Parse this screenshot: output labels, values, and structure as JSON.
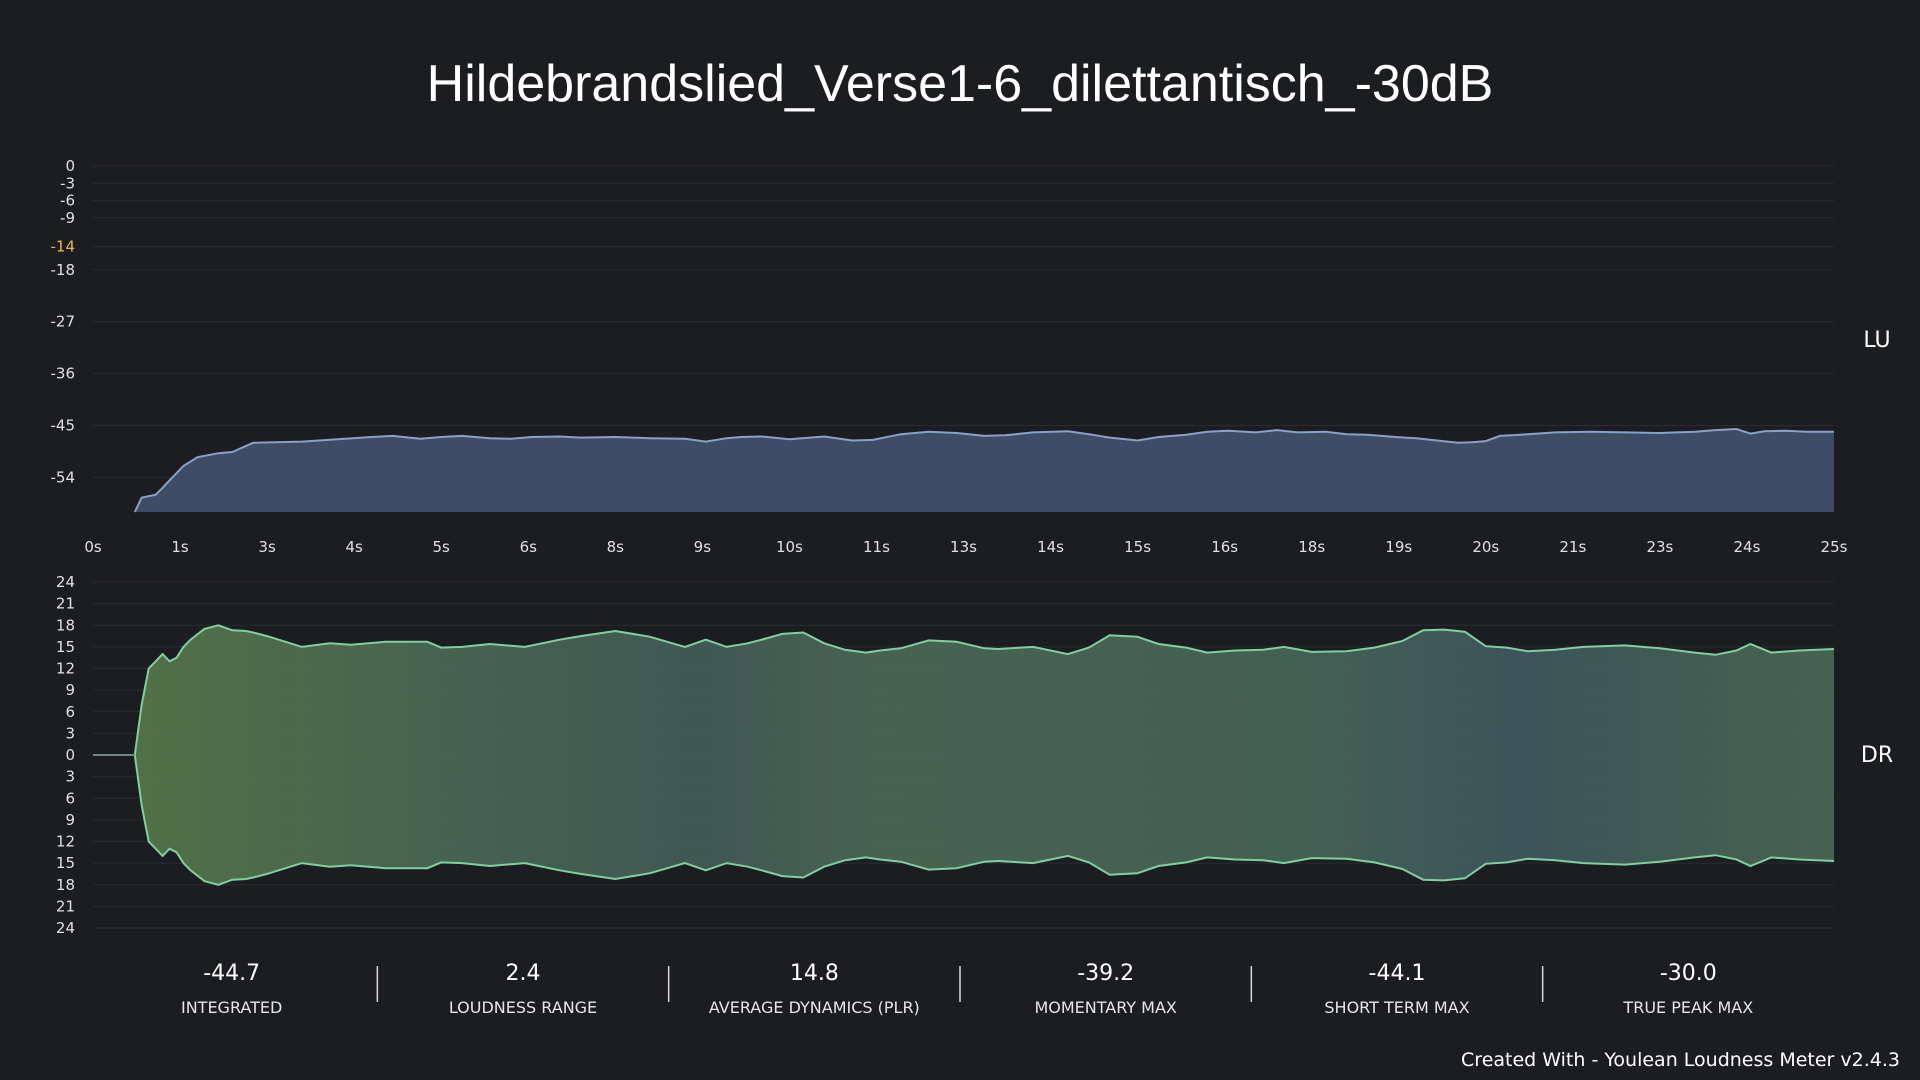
{
  "chart_data": {
    "title": "Hildebrandslied_Verse1-6_dilettantisch_-30dB",
    "loudness": {
      "type": "area",
      "axis_tag": "LU",
      "ylim": [
        -60,
        0
      ],
      "yticks": [
        "0",
        "-3",
        "-6",
        "-9",
        "-14",
        "-18",
        "-27",
        "-36",
        "-45",
        "-54"
      ],
      "ytick_values": [
        0,
        -3,
        -6,
        -9,
        -14,
        -18,
        -27,
        -36,
        -45,
        -54
      ],
      "highlight_tick": "-14",
      "xlim": [
        0,
        25
      ],
      "xticks": [
        "0s",
        "1s",
        "3s",
        "4s",
        "5s",
        "6s",
        "8s",
        "9s",
        "10s",
        "11s",
        "13s",
        "14s",
        "15s",
        "16s",
        "18s",
        "19s",
        "20s",
        "21s",
        "23s",
        "24s",
        "25s"
      ],
      "fill_color": "#3e4c66",
      "line_color": "#8aa0c8",
      "x": [
        0.6,
        0.7,
        0.9,
        1.0,
        1.1,
        1.3,
        1.5,
        1.8,
        2.0,
        2.3,
        3.0,
        4.0,
        4.3,
        4.7,
        5.0,
        5.3,
        5.7,
        6.0,
        6.3,
        6.7,
        7.0,
        7.5,
        8.0,
        8.5,
        8.8,
        9.1,
        9.3,
        9.6,
        10.0,
        10.5,
        10.9,
        11.2,
        11.6,
        12.0,
        12.4,
        12.8,
        13.1,
        13.5,
        14.0,
        14.3,
        14.6,
        15.0,
        15.3,
        15.7,
        16.0,
        16.3,
        16.7,
        17.0,
        17.3,
        17.7,
        18.0,
        18.3,
        18.7,
        19.0,
        19.3,
        19.6,
        19.8,
        20.0,
        20.2,
        20.5,
        21.0,
        21.5,
        22.0,
        22.5,
        23.0,
        23.3,
        23.6,
        23.8,
        24.0,
        24.3,
        24.6,
        25.0
      ],
      "values": [
        -60.0,
        -57.5,
        -57.0,
        -55.8,
        -54.5,
        -52.0,
        -50.5,
        -49.8,
        -49.6,
        -48.0,
        -47.8,
        -47.0,
        -46.8,
        -47.3,
        -47.0,
        -46.8,
        -47.2,
        -47.3,
        -47.0,
        -46.9,
        -47.1,
        -47.0,
        -47.2,
        -47.3,
        -47.8,
        -47.2,
        -47.0,
        -46.9,
        -47.4,
        -46.9,
        -47.6,
        -47.5,
        -46.5,
        -46.1,
        -46.3,
        -46.8,
        -46.7,
        -46.2,
        -46.0,
        -46.5,
        -47.1,
        -47.6,
        -47.0,
        -46.6,
        -46.1,
        -45.9,
        -46.2,
        -45.8,
        -46.2,
        -46.1,
        -46.5,
        -46.6,
        -47.0,
        -47.2,
        -47.6,
        -48.0,
        -47.9,
        -47.7,
        -46.8,
        -46.6,
        -46.2,
        -46.1,
        -46.2,
        -46.3,
        -46.1,
        -45.8,
        -45.6,
        -46.4,
        -46.0,
        -45.9,
        -46.1,
        -46.1
      ]
    },
    "dynamics": {
      "type": "area",
      "axis_tag": "DR",
      "ylim": [
        -24,
        24
      ],
      "yticks": [
        "24",
        "21",
        "18",
        "15",
        "12",
        "9",
        "6",
        "3",
        "0",
        "3",
        "6",
        "9",
        "12",
        "15",
        "18",
        "21",
        "24"
      ],
      "ytick_values": [
        24,
        21,
        18,
        15,
        12,
        9,
        6,
        3,
        0,
        -3,
        -6,
        -9,
        -12,
        -15,
        -18,
        -21,
        -24
      ],
      "xlim": [
        0,
        25
      ],
      "fill_color": "#4a6a52",
      "line_color": "#7fd0a0",
      "x": [
        0.0,
        0.6,
        0.7,
        0.8,
        0.9,
        1.0,
        1.1,
        1.2,
        1.3,
        1.4,
        1.6,
        1.8,
        2.0,
        2.2,
        2.3,
        2.5,
        3.0,
        3.4,
        3.7,
        4.2,
        4.8,
        5.0,
        5.3,
        5.7,
        6.2,
        6.7,
        7.0,
        7.5,
        8.0,
        8.5,
        8.8,
        9.1,
        9.4,
        9.6,
        9.9,
        10.2,
        10.5,
        10.8,
        11.1,
        11.3,
        11.6,
        12.0,
        12.4,
        12.8,
        13.0,
        13.5,
        14.0,
        14.3,
        14.6,
        15.0,
        15.3,
        15.7,
        16.0,
        16.4,
        16.8,
        17.1,
        17.5,
        18.0,
        18.4,
        18.8,
        19.1,
        19.4,
        19.7,
        20.0,
        20.3,
        20.6,
        21.0,
        21.4,
        22.0,
        22.5,
        23.0,
        23.3,
        23.6,
        23.8,
        24.1,
        24.5,
        25.0
      ],
      "values": [
        0.0,
        0.0,
        7.0,
        12.0,
        13.0,
        14.0,
        13.0,
        13.5,
        15.0,
        16.0,
        17.5,
        18.0,
        17.3,
        17.2,
        17.0,
        16.5,
        15.0,
        15.5,
        15.3,
        15.7,
        15.7,
        14.9,
        15.0,
        15.4,
        15.0,
        16.0,
        16.5,
        17.2,
        16.4,
        15.0,
        16.0,
        15.0,
        15.5,
        16.0,
        16.8,
        17.0,
        15.5,
        14.6,
        14.2,
        14.5,
        14.8,
        15.9,
        15.7,
        14.8,
        14.7,
        15.0,
        14.0,
        14.9,
        16.6,
        16.4,
        15.4,
        14.9,
        14.2,
        14.5,
        14.6,
        15.0,
        14.3,
        14.4,
        14.9,
        15.8,
        17.3,
        17.4,
        17.1,
        15.1,
        14.9,
        14.4,
        14.6,
        15.0,
        15.2,
        14.8,
        14.2,
        13.9,
        14.5,
        15.4,
        14.2,
        14.5,
        14.7
      ]
    },
    "xlabel": "",
    "ylabel": ""
  },
  "stats": [
    {
      "value": "-44.7",
      "label": "INTEGRATED"
    },
    {
      "value": "2.4",
      "label": "LOUDNESS RANGE"
    },
    {
      "value": "14.8",
      "label": "AVERAGE DYNAMICS (PLR)"
    },
    {
      "value": "-39.2",
      "label": "MOMENTARY MAX"
    },
    {
      "value": "-44.1",
      "label": "SHORT TERM MAX"
    },
    {
      "value": "-30.0",
      "label": "TRUE PEAK MAX"
    }
  ],
  "footer": "Created With - Youlean Loudness Meter v2.4.3"
}
